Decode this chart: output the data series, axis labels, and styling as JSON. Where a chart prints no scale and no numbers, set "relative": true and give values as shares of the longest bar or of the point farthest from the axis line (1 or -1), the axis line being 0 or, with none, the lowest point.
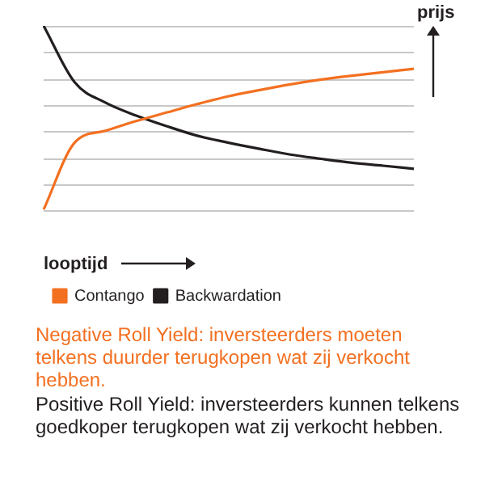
{
  "chart_data": {
    "type": "line",
    "relative": true,
    "xlabel": "looptijd",
    "ylabel": "prijs",
    "categories": [
      null,
      null,
      null,
      null,
      null,
      null,
      null,
      null,
      null,
      null,
      null,
      null,
      null
    ],
    "series": [
      {
        "name": "Contango",
        "color": "#f37021",
        "values": [
          0.007,
          0.368,
          0.433,
          0.485,
          0.532,
          0.578,
          0.62,
          0.653,
          0.684,
          0.71,
          0.731,
          0.749,
          0.768
        ]
      },
      {
        "name": "Backwardation",
        "color": "#231f20",
        "values": [
          1,
          0.696,
          0.585,
          0.515,
          0.457,
          0.405,
          0.368,
          0.335,
          0.304,
          0.281,
          0.26,
          0.244,
          0.227
        ]
      }
    ],
    "grid": "y",
    "legend": "bottom left",
    "marker": "none",
    "line_style": "solid",
    "annotations": [
      "Negative Roll Yield: inversteerders moeten telkens duurder terugkopen wat zij verkocht hebben.",
      "Positive Roll Yield: inversteerders kunnen telkens goedkoper terugkopen wat zij verkocht hebben."
    ]
  }
}
